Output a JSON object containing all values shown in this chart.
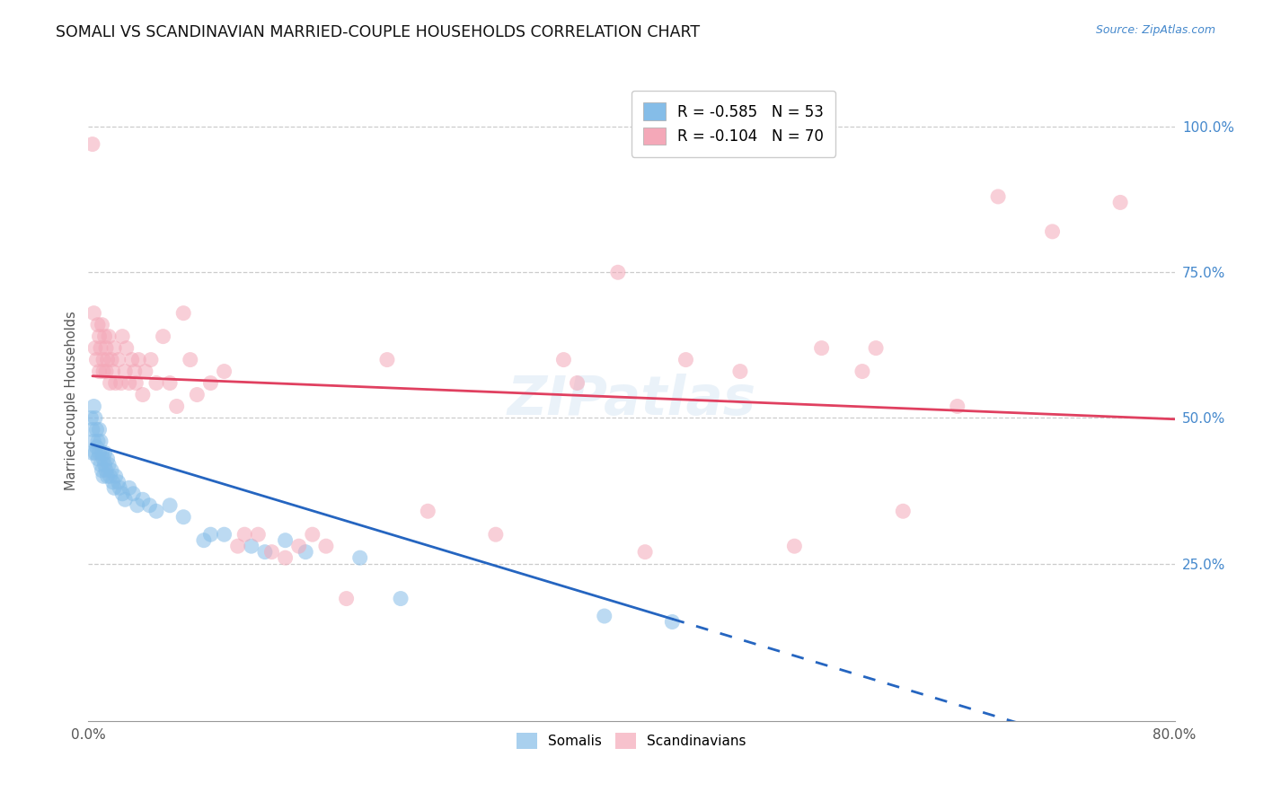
{
  "title": "SOMALI VS SCANDINAVIAN MARRIED-COUPLE HOUSEHOLDS CORRELATION CHART",
  "source": "Source: ZipAtlas.com",
  "ylabel": "Married-couple Households",
  "xlim": [
    0.0,
    0.8
  ],
  "ylim": [
    -0.02,
    1.08
  ],
  "ytick_positions": [
    0.25,
    0.5,
    0.75,
    1.0
  ],
  "ytick_labels": [
    "25.0%",
    "50.0%",
    "75.0%",
    "100.0%"
  ],
  "xtick_positions": [
    0.0,
    0.8
  ],
  "xtick_labels": [
    "0.0%",
    "80.0%"
  ],
  "somali_R": "-0.585",
  "somali_N": "53",
  "scand_R": "-0.104",
  "scand_N": "70",
  "somali_color": "#85bde8",
  "scand_color": "#f4a8b8",
  "somali_line_color": "#2565c0",
  "scand_line_color": "#e04060",
  "background": "#ffffff",
  "watermark": "ZIPatlas",
  "somali_points": [
    [
      0.002,
      0.5
    ],
    [
      0.003,
      0.48
    ],
    [
      0.003,
      0.44
    ],
    [
      0.004,
      0.52
    ],
    [
      0.004,
      0.46
    ],
    [
      0.005,
      0.5
    ],
    [
      0.005,
      0.44
    ],
    [
      0.006,
      0.48
    ],
    [
      0.006,
      0.45
    ],
    [
      0.007,
      0.46
    ],
    [
      0.007,
      0.43
    ],
    [
      0.008,
      0.48
    ],
    [
      0.008,
      0.44
    ],
    [
      0.009,
      0.46
    ],
    [
      0.009,
      0.42
    ],
    [
      0.01,
      0.44
    ],
    [
      0.01,
      0.41
    ],
    [
      0.011,
      0.43
    ],
    [
      0.011,
      0.4
    ],
    [
      0.012,
      0.44
    ],
    [
      0.012,
      0.42
    ],
    [
      0.013,
      0.41
    ],
    [
      0.014,
      0.43
    ],
    [
      0.014,
      0.4
    ],
    [
      0.015,
      0.42
    ],
    [
      0.016,
      0.4
    ],
    [
      0.017,
      0.41
    ],
    [
      0.018,
      0.39
    ],
    [
      0.019,
      0.38
    ],
    [
      0.02,
      0.4
    ],
    [
      0.022,
      0.39
    ],
    [
      0.023,
      0.38
    ],
    [
      0.025,
      0.37
    ],
    [
      0.027,
      0.36
    ],
    [
      0.03,
      0.38
    ],
    [
      0.033,
      0.37
    ],
    [
      0.036,
      0.35
    ],
    [
      0.04,
      0.36
    ],
    [
      0.045,
      0.35
    ],
    [
      0.05,
      0.34
    ],
    [
      0.06,
      0.35
    ],
    [
      0.07,
      0.33
    ],
    [
      0.085,
      0.29
    ],
    [
      0.09,
      0.3
    ],
    [
      0.1,
      0.3
    ],
    [
      0.12,
      0.28
    ],
    [
      0.13,
      0.27
    ],
    [
      0.145,
      0.29
    ],
    [
      0.16,
      0.27
    ],
    [
      0.2,
      0.26
    ],
    [
      0.23,
      0.19
    ],
    [
      0.38,
      0.16
    ],
    [
      0.43,
      0.15
    ]
  ],
  "scand_points": [
    [
      0.003,
      0.97
    ],
    [
      0.004,
      0.68
    ],
    [
      0.005,
      0.62
    ],
    [
      0.006,
      0.6
    ],
    [
      0.007,
      0.66
    ],
    [
      0.008,
      0.58
    ],
    [
      0.008,
      0.64
    ],
    [
      0.009,
      0.62
    ],
    [
      0.01,
      0.66
    ],
    [
      0.011,
      0.6
    ],
    [
      0.011,
      0.58
    ],
    [
      0.012,
      0.64
    ],
    [
      0.013,
      0.62
    ],
    [
      0.013,
      0.58
    ],
    [
      0.014,
      0.6
    ],
    [
      0.015,
      0.64
    ],
    [
      0.016,
      0.56
    ],
    [
      0.017,
      0.6
    ],
    [
      0.018,
      0.58
    ],
    [
      0.019,
      0.62
    ],
    [
      0.02,
      0.56
    ],
    [
      0.022,
      0.6
    ],
    [
      0.024,
      0.56
    ],
    [
      0.025,
      0.64
    ],
    [
      0.027,
      0.58
    ],
    [
      0.028,
      0.62
    ],
    [
      0.03,
      0.56
    ],
    [
      0.032,
      0.6
    ],
    [
      0.034,
      0.58
    ],
    [
      0.035,
      0.56
    ],
    [
      0.037,
      0.6
    ],
    [
      0.04,
      0.54
    ],
    [
      0.042,
      0.58
    ],
    [
      0.046,
      0.6
    ],
    [
      0.05,
      0.56
    ],
    [
      0.055,
      0.64
    ],
    [
      0.06,
      0.56
    ],
    [
      0.065,
      0.52
    ],
    [
      0.07,
      0.68
    ],
    [
      0.075,
      0.6
    ],
    [
      0.08,
      0.54
    ],
    [
      0.09,
      0.56
    ],
    [
      0.1,
      0.58
    ],
    [
      0.11,
      0.28
    ],
    [
      0.115,
      0.3
    ],
    [
      0.125,
      0.3
    ],
    [
      0.135,
      0.27
    ],
    [
      0.145,
      0.26
    ],
    [
      0.155,
      0.28
    ],
    [
      0.165,
      0.3
    ],
    [
      0.175,
      0.28
    ],
    [
      0.19,
      0.19
    ],
    [
      0.22,
      0.6
    ],
    [
      0.25,
      0.34
    ],
    [
      0.3,
      0.3
    ],
    [
      0.35,
      0.6
    ],
    [
      0.36,
      0.56
    ],
    [
      0.39,
      0.75
    ],
    [
      0.41,
      0.27
    ],
    [
      0.44,
      0.6
    ],
    [
      0.48,
      0.58
    ],
    [
      0.52,
      0.28
    ],
    [
      0.54,
      0.62
    ],
    [
      0.57,
      0.58
    ],
    [
      0.58,
      0.62
    ],
    [
      0.6,
      0.34
    ],
    [
      0.64,
      0.52
    ],
    [
      0.67,
      0.88
    ],
    [
      0.71,
      0.82
    ],
    [
      0.76,
      0.87
    ]
  ]
}
